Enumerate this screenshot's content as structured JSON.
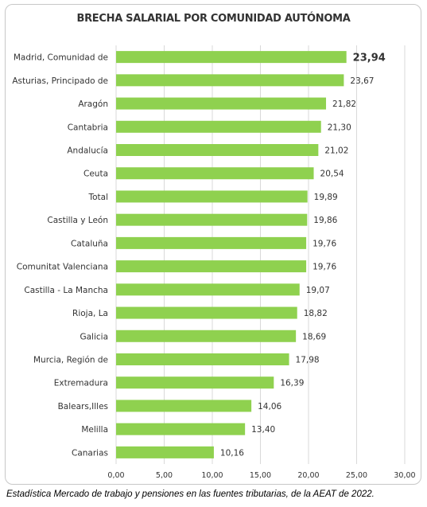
{
  "chart_data": {
    "type": "bar",
    "orientation": "horizontal",
    "title": "BRECHA SALARIAL POR COMUNIDAD AUTÓNOMA",
    "categories": [
      "Madrid, Comunidad de",
      "Asturias, Principado de",
      "Aragón",
      "Cantabria",
      "Andalucía",
      "Ceuta",
      "Total",
      "Castilla y León",
      "Cataluña",
      "Comunitat Valenciana",
      "Castilla - La Mancha",
      "Rioja, La",
      "Galicia",
      "Murcia, Región de",
      "Extremadura",
      "Balears,Illes",
      "Melilla",
      "Canarias"
    ],
    "values": [
      23.94,
      23.67,
      21.82,
      21.3,
      21.02,
      20.54,
      19.89,
      19.86,
      19.76,
      19.76,
      19.07,
      18.82,
      18.69,
      17.98,
      16.39,
      14.06,
      13.4,
      10.16
    ],
    "value_labels": [
      "23,94",
      "23,67",
      "21,82",
      "21,30",
      "21,02",
      "20,54",
      "19,89",
      "19,86",
      "19,76",
      "19,76",
      "19,07",
      "18,82",
      "18,69",
      "17,98",
      "16,39",
      "14,06",
      "13,40",
      "10,16"
    ],
    "xlim": [
      0,
      30
    ],
    "ticks": [
      0,
      5,
      10,
      15,
      20,
      25,
      30
    ],
    "tick_labels": [
      "0,00",
      "5,00",
      "10,00",
      "15,00",
      "20,00",
      "25,00",
      "30,00"
    ],
    "grid": true,
    "bar_color": "#8fd14f",
    "grid_color": "#d9d9d9",
    "highlight_index": 0
  },
  "source_note": "Estadística Mercado de trabajo y pensiones en las fuentes tributarias, de la AEAT de 2022."
}
